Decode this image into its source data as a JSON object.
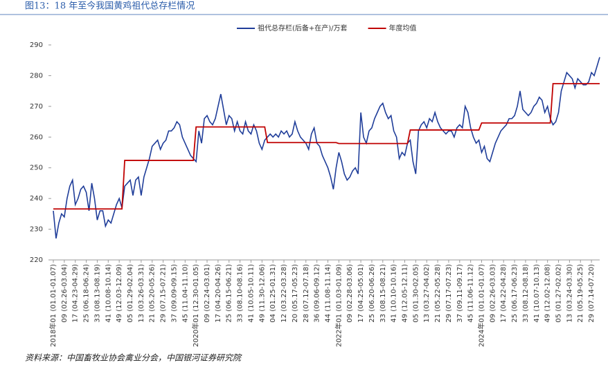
{
  "chart_data": {
    "type": "line",
    "title": "图13：18 年至今我国黄鸡祖代总存栏情况",
    "source": "资料来源：中国畜牧业协会禽业分会，中国银河证券研究院",
    "categories": [
      "2018年01 (01.01-01.07)",
      null,
      null,
      null,
      "09 (02.26-03.04)",
      null,
      null,
      null,
      "17 (04.23-04.29)",
      null,
      null,
      null,
      "25 (06.18-06.24)",
      null,
      null,
      null,
      "33 (08.13-08.19)",
      null,
      null,
      null,
      "41 (10.08-10.14)",
      null,
      null,
      null,
      "49 (12.03-12.09)",
      null,
      null,
      null,
      "05 (01.29-02.04)",
      null,
      null,
      null,
      "13 (03.26-03.31)",
      null,
      null,
      null,
      "21 (05.20-05.26)",
      null,
      null,
      null,
      "29 (07.15-07.21)",
      null,
      null,
      null,
      "37 (09.09-09.15)",
      null,
      null,
      null,
      "45 (11.04-11.10)",
      null,
      null,
      null,
      "2020年01 (12.30-01.05)",
      null,
      null,
      null,
      "09 (02.24-03.01)",
      null,
      null,
      null,
      "17 (04.20-04.26)",
      null,
      null,
      null,
      "25 (06.15-06.21)",
      null,
      null,
      null,
      "33 (08.10-08.16)",
      null,
      null,
      null,
      "41 (10.05-10.11)",
      null,
      null,
      null,
      "49 (11.30-12.06)",
      null,
      null,
      null,
      "04 (01.25-01.31)",
      null,
      null,
      null,
      "12 (03.22-03.28)",
      null,
      null,
      null,
      "20 (05.17-05.23)",
      null,
      null,
      null,
      "28 (07.12-07.18)",
      null,
      null,
      null,
      "36 (09.06-09.12)",
      null,
      null,
      null,
      "44 (11.08-11.14)",
      null,
      null,
      null,
      "2022年01 (01.03-01.09)",
      null,
      null,
      null,
      "09 (02.28-03.06)",
      null,
      null,
      null,
      "17 (04.25-05.01)",
      null,
      null,
      null,
      "25 (06.20-06.26)",
      null,
      null,
      null,
      "33 (08.15-08.21)",
      null,
      null,
      null,
      "41 (10.10-10.16)",
      null,
      null,
      null,
      "49 (12.05-12.11)",
      null,
      null,
      null,
      "05 (01.30-02.05)",
      null,
      null,
      null,
      "13 (03.27-04.02)",
      null,
      null,
      null,
      "21 (05.22-05.28)",
      null,
      null,
      null,
      "29 (07.17-07.23)",
      null,
      null,
      null,
      "37 (09.11-09.17)",
      null,
      null,
      null,
      "45 (11.06-11.12)",
      null,
      null,
      null,
      "2024年01 (01.01-01.07)",
      null,
      null,
      null,
      "09 (02.26-03.03)",
      null,
      null,
      null,
      "17 (04.22-04.28)",
      null,
      null,
      null,
      "25 (06.17-06.23)",
      null,
      null,
      null,
      "33 (08.12-08.18)",
      null,
      null,
      null,
      "41 (10.07-10.13)",
      null,
      null,
      null,
      "49 (12.02-12.08)",
      null,
      null,
      null,
      "05 (01.27-02.02)",
      null,
      null,
      null,
      "13 (03.24-03.30)",
      null,
      null,
      null,
      "21 (05.19-05.25)",
      null,
      null,
      null,
      "29 (07.14-07.20)",
      null,
      null,
      null
    ],
    "series": [
      {
        "name": "祖代总存栏(后备+在产)/万套",
        "color": "#1f3d99",
        "values": [
          236,
          227,
          232,
          235,
          234,
          240,
          244,
          246,
          238,
          240,
          243,
          244,
          242,
          236,
          245,
          240,
          233,
          236,
          236,
          231,
          233,
          232,
          235,
          238,
          240,
          237,
          244,
          245,
          246,
          241,
          246,
          247,
          241,
          247,
          250,
          253,
          257,
          258,
          259,
          256,
          258,
          259,
          262,
          262,
          263,
          265,
          264,
          260,
          258,
          256,
          254,
          253,
          252,
          262,
          258,
          266,
          267,
          265,
          264,
          266,
          270,
          274,
          269,
          264,
          267,
          266,
          262,
          265,
          262,
          261,
          265,
          262,
          261,
          264,
          262,
          258,
          256,
          259,
          260,
          261,
          260,
          261,
          260,
          262,
          261,
          262,
          260,
          261,
          265,
          262,
          260,
          259,
          258,
          256,
          261,
          263,
          258,
          257,
          254,
          252,
          250,
          247,
          243,
          250,
          255,
          252,
          248,
          246,
          247,
          249,
          250,
          248,
          268,
          260,
          258,
          262,
          263,
          266,
          268,
          270,
          271,
          268,
          266,
          267,
          262,
          260,
          253,
          255,
          254,
          258,
          259,
          252,
          248,
          262,
          264,
          265,
          263,
          266,
          265,
          268,
          265,
          263,
          262,
          261,
          262,
          262,
          260,
          263,
          264,
          263,
          270,
          268,
          263,
          260,
          258,
          259,
          255,
          257,
          253,
          252,
          255,
          258,
          260,
          262,
          263,
          264,
          266,
          266,
          267,
          270,
          275,
          269,
          268,
          267,
          268,
          270,
          271,
          273,
          272,
          268,
          270,
          266,
          264,
          265,
          268,
          275,
          278,
          281,
          280,
          279,
          276,
          279,
          278,
          277,
          277,
          278,
          281,
          280,
          283,
          286
        ]
      },
      {
        "name": "年度均值",
        "color": "#c00000",
        "values": [
          236.6,
          236.6,
          236.6,
          236.6,
          236.6,
          236.6,
          236.6,
          236.6,
          236.6,
          236.6,
          236.6,
          236.6,
          236.6,
          236.6,
          236.6,
          236.6,
          236.6,
          236.6,
          236.6,
          236.6,
          236.6,
          236.6,
          236.6,
          236.6,
          236.6,
          236.6,
          252.4,
          252.4,
          252.4,
          252.4,
          252.4,
          252.4,
          252.4,
          252.4,
          252.4,
          252.4,
          252.4,
          252.4,
          252.4,
          252.4,
          252.4,
          252.4,
          252.4,
          252.4,
          252.4,
          252.4,
          252.4,
          252.4,
          252.4,
          252.4,
          252.4,
          252.4,
          263.3,
          263.3,
          263.3,
          263.3,
          263.3,
          263.3,
          263.3,
          263.3,
          263.3,
          263.3,
          263.3,
          263.3,
          263.3,
          263.3,
          263.3,
          263.3,
          263.3,
          263.3,
          263.3,
          263.3,
          263.3,
          263.3,
          263.3,
          263.3,
          263.3,
          263.3,
          258.2,
          258.2,
          258.2,
          258.2,
          258.2,
          258.2,
          258.2,
          258.2,
          258.2,
          258.2,
          258.2,
          258.2,
          258.2,
          258.2,
          258.2,
          258.2,
          258.2,
          258.2,
          258.2,
          258.2,
          258.2,
          258.2,
          258.2,
          258.2,
          258.2,
          258.2,
          257.9,
          257.9,
          257.9,
          257.9,
          257.9,
          257.9,
          257.9,
          257.9,
          257.9,
          257.9,
          257.9,
          257.9,
          257.9,
          257.9,
          257.9,
          257.9,
          257.9,
          257.9,
          257.9,
          257.9,
          257.9,
          257.9,
          257.9,
          257.9,
          257.9,
          257.9,
          262.3,
          262.3,
          262.3,
          262.3,
          262.3,
          262.3,
          262.3,
          262.3,
          262.3,
          262.3,
          262.3,
          262.3,
          262.3,
          262.3,
          262.3,
          262.3,
          262.3,
          262.3,
          262.3,
          262.3,
          262.3,
          262.3,
          262.3,
          262.3,
          262.3,
          262.3,
          264.6,
          264.6,
          264.6,
          264.6,
          264.6,
          264.6,
          264.6,
          264.6,
          264.6,
          264.6,
          264.6,
          264.6,
          264.6,
          264.6,
          264.6,
          264.6,
          264.6,
          264.6,
          264.6,
          264.6,
          264.6,
          264.6,
          264.6,
          264.6,
          264.6,
          264.6,
          277.4,
          277.4,
          277.4,
          277.4,
          277.4,
          277.4,
          277.4,
          277.4,
          277.4,
          277.4,
          277.4,
          277.4,
          277.4,
          277.4,
          277.4,
          277.4,
          277.4,
          277.4
        ]
      }
    ],
    "ylim": [
      220,
      290
    ],
    "yticks": [
      220,
      230,
      240,
      250,
      260,
      270,
      280,
      290
    ],
    "grid": false,
    "legend": "top"
  }
}
